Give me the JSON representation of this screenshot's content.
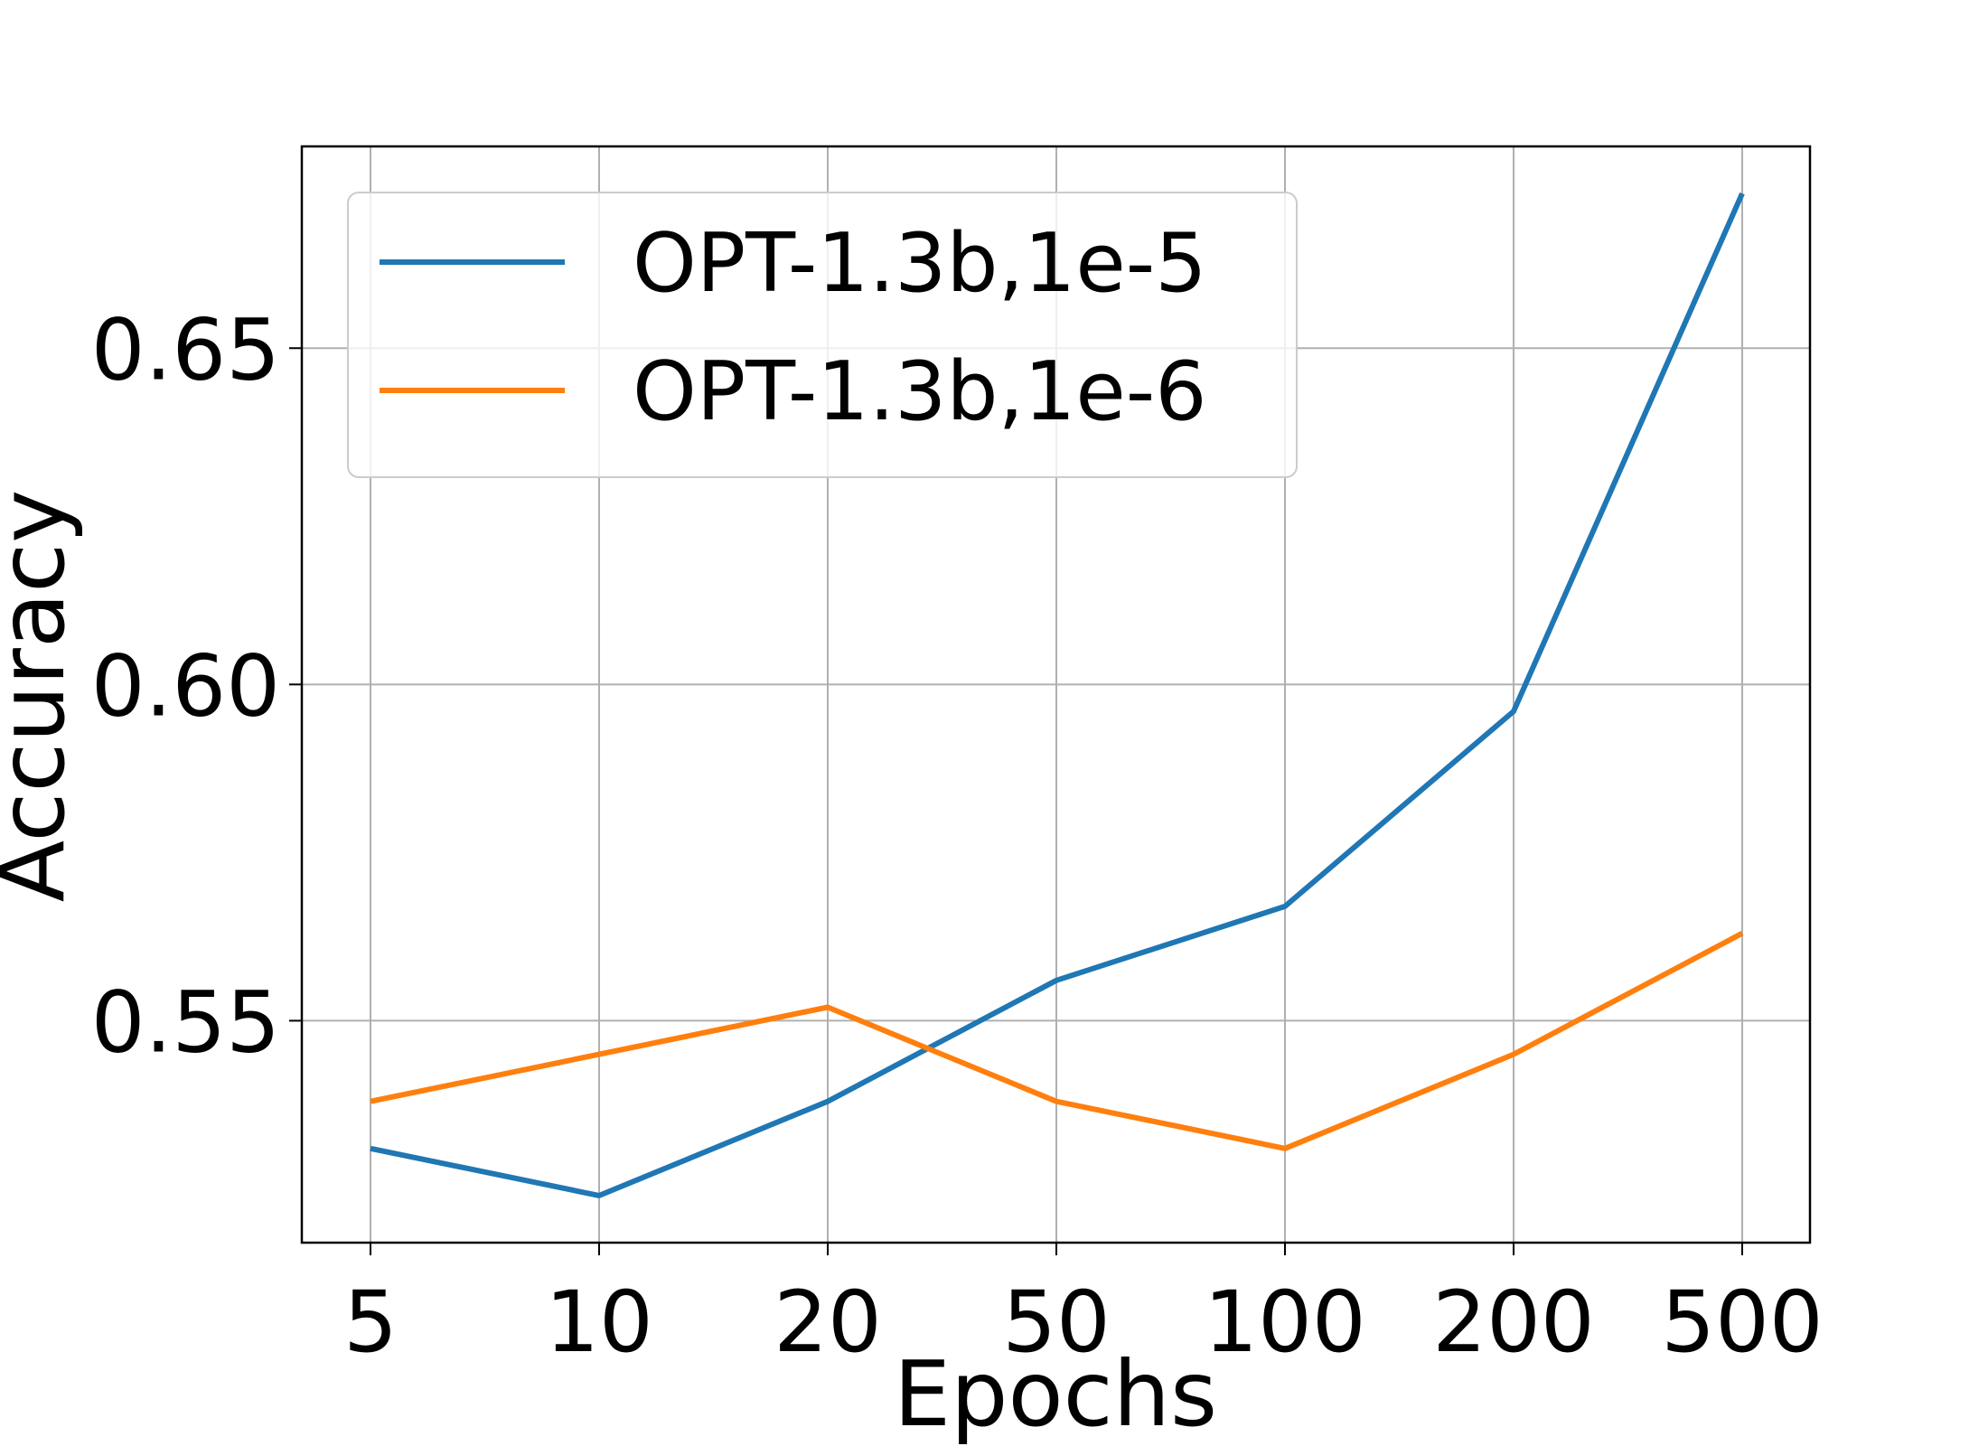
{
  "chart_data": {
    "type": "line",
    "categories": [
      "5",
      "10",
      "20",
      "50",
      "100",
      "200",
      "500"
    ],
    "xlabel": "Epochs",
    "ylabel": "Accuracy",
    "ylim": [
      0.517,
      0.68
    ],
    "yticks": [
      0.55,
      0.6,
      0.65
    ],
    "ytick_labels": [
      "0.55",
      "0.60",
      "0.65"
    ],
    "grid": true,
    "legend_position": "upper-left",
    "series": [
      {
        "name": "OPT-1.3b,1e-5",
        "color": "#1f77b4",
        "values": [
          0.531,
          0.524,
          0.538,
          0.556,
          0.567,
          0.596,
          0.673
        ]
      },
      {
        "name": "OPT-1.3b,1e-6",
        "color": "#ff7f0e",
        "values": [
          0.538,
          0.545,
          0.552,
          0.538,
          0.531,
          0.545,
          0.563
        ]
      }
    ]
  }
}
